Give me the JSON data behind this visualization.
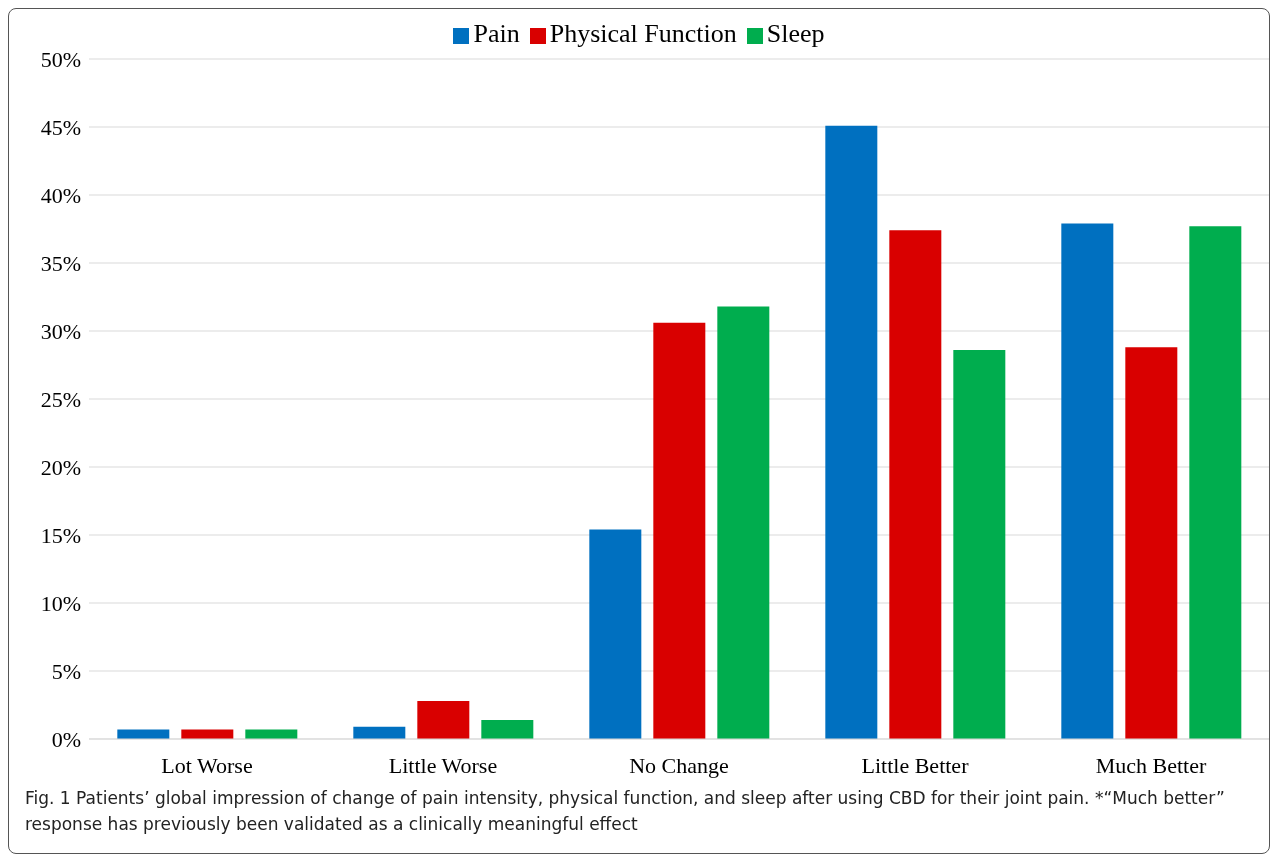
{
  "chart_data": {
    "type": "bar",
    "categories": [
      "Lot Worse",
      "Little Worse",
      "No Change",
      "Little Better",
      "Much Better"
    ],
    "series": [
      {
        "name": "Pain",
        "color": "#0070c0",
        "values": [
          0.7,
          0.9,
          15.4,
          45.1,
          37.9
        ]
      },
      {
        "name": "Physical Function",
        "color": "#d90000",
        "values": [
          0.7,
          2.8,
          30.6,
          37.4,
          28.8
        ]
      },
      {
        "name": "Sleep",
        "color": "#00ad4e",
        "values": [
          0.7,
          1.4,
          31.8,
          28.6,
          37.7
        ]
      }
    ],
    "ylim": [
      0,
      50
    ],
    "yticks": [
      {
        "value": 0,
        "label": "0%"
      },
      {
        "value": 5,
        "label": "5%"
      },
      {
        "value": 10,
        "label": "10%"
      },
      {
        "value": 15,
        "label": "15%"
      },
      {
        "value": 20,
        "label": "20%"
      },
      {
        "value": 25,
        "label": "25%"
      },
      {
        "value": 30,
        "label": "30%"
      },
      {
        "value": 35,
        "label": "35%"
      },
      {
        "value": 40,
        "label": "40%"
      },
      {
        "value": 45,
        "label": "45%"
      },
      {
        "value": 50,
        "label": "50%"
      }
    ],
    "grid": "y",
    "legend": "top",
    "annotations": [
      "Fig. 1  Patients’ global impression of change of pain intensity, physical function, and sleep after using CBD for their joint pain. *“Much better” response has previously been validated as a clinically meaningful effect"
    ]
  }
}
